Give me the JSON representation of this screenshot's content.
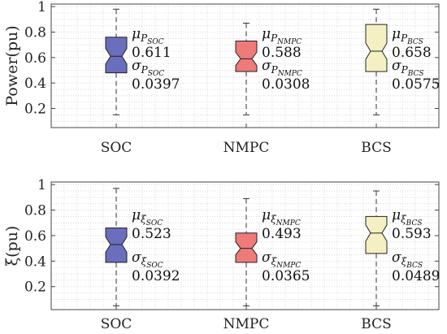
{
  "chart_data": [
    {
      "type": "box",
      "ylabel": "Power(pu)",
      "ylim": [
        0.05,
        1.02
      ],
      "yticks": [
        "0.2",
        "0.4",
        "0.6",
        "0.8",
        "1"
      ],
      "categories": [
        "SOC",
        "NMPC",
        "BCS"
      ],
      "grid": "dotted",
      "notched": true,
      "colors": [
        "#6a6ebd",
        "#ee7a7a",
        "#f5f0c3"
      ],
      "boxes": [
        {
          "whisker_low": 0.15,
          "q1": 0.48,
          "median": 0.61,
          "q3": 0.76,
          "whisker_high": 0.98,
          "annotation": {
            "mu_sym": "μ",
            "mu_sub": "P",
            "mu_subsub": "SOC",
            "mu_val": "0.611",
            "sigma_sym": "σ",
            "sigma_sub": "P",
            "sigma_subsub": "SOC",
            "sigma_val": "0.0397"
          }
        },
        {
          "whisker_low": 0.15,
          "q1": 0.49,
          "median": 0.59,
          "q3": 0.73,
          "whisker_high": 0.87,
          "annotation": {
            "mu_sym": "μ",
            "mu_sub": "P",
            "mu_subsub": "NMPC",
            "mu_val": "0.588",
            "sigma_sym": "σ",
            "sigma_sub": "P",
            "sigma_subsub": "NMPC",
            "sigma_val": "0.0308"
          }
        },
        {
          "whisker_low": 0.15,
          "q1": 0.49,
          "median": 0.65,
          "q3": 0.86,
          "whisker_high": 0.98,
          "annotation": {
            "mu_sym": "μ",
            "mu_sub": "P",
            "mu_subsub": "BCS",
            "mu_val": "0.658",
            "sigma_sym": "σ",
            "sigma_sub": "P",
            "sigma_subsub": "BCS",
            "sigma_val": "0.0575"
          }
        }
      ]
    },
    {
      "type": "box",
      "ylabel": "ξ(pu)",
      "ylim": [
        0.02,
        1.02
      ],
      "yticks": [
        "0.2",
        "0.4",
        "0.6",
        "0.8",
        "1"
      ],
      "categories": [
        "SOC",
        "NMPC",
        "BCS"
      ],
      "grid": "dotted",
      "notched": true,
      "colors": [
        "#6a6ebd",
        "#ee7a7a",
        "#f5f0c3"
      ],
      "boxes": [
        {
          "whisker_low": 0.05,
          "q1": 0.39,
          "median": 0.53,
          "q3": 0.66,
          "whisker_high": 0.97,
          "annotation": {
            "mu_sym": "μ",
            "mu_sub": "ξ",
            "mu_subsub": "SOC",
            "mu_val": "0.523",
            "sigma_sym": "σ",
            "sigma_sub": "ξ",
            "sigma_subsub": "SOC",
            "sigma_val": "0.0392"
          }
        },
        {
          "whisker_low": 0.05,
          "q1": 0.39,
          "median": 0.5,
          "q3": 0.62,
          "whisker_high": 0.89,
          "annotation": {
            "mu_sym": "μ",
            "mu_sub": "ξ",
            "mu_subsub": "NMPC",
            "mu_val": "0.493",
            "sigma_sym": "σ",
            "sigma_sub": "ξ",
            "sigma_subsub": "NMPC",
            "sigma_val": "0.0365"
          }
        },
        {
          "whisker_low": 0.05,
          "q1": 0.46,
          "median": 0.62,
          "q3": 0.75,
          "whisker_high": 0.95,
          "annotation": {
            "mu_sym": "μ",
            "mu_sub": "ξ",
            "mu_subsub": "BCS",
            "mu_val": "0.593",
            "sigma_sym": "σ",
            "sigma_sub": "ξ",
            "sigma_subsub": "BCS",
            "sigma_val": "0.0489"
          }
        }
      ]
    }
  ]
}
